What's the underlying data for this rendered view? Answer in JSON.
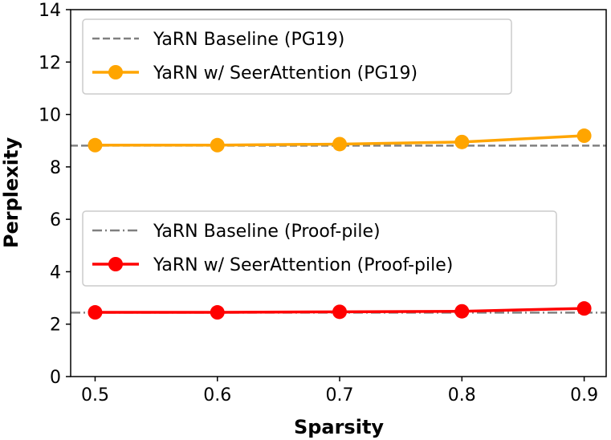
{
  "chart_data": {
    "type": "line",
    "xlabel": "Sparsity",
    "ylabel": "Perplexity",
    "xlim": [
      0.48,
      0.918
    ],
    "ylim": [
      0,
      14
    ],
    "xticks": [
      0.5,
      0.6,
      0.7,
      0.8,
      0.9
    ],
    "xtick_labels": [
      "0.5",
      "0.6",
      "0.7",
      "0.8",
      "0.9"
    ],
    "yticks": [
      0,
      2,
      4,
      6,
      8,
      10,
      12,
      14
    ],
    "ytick_labels": [
      "0",
      "2",
      "4",
      "6",
      "8",
      "10",
      "12",
      "14"
    ],
    "grid": false,
    "x": [
      0.5,
      0.6,
      0.7,
      0.8,
      0.9
    ],
    "series": [
      {
        "name": "YaRN Baseline (PG19)",
        "kind": "hline",
        "value": 8.81,
        "color": "#808080",
        "dash": "dashed"
      },
      {
        "name": "YaRN w/ SeerAttention (PG19)",
        "values": [
          8.83,
          8.83,
          8.87,
          8.95,
          9.19
        ],
        "color": "#FFA500",
        "marker": "circle"
      },
      {
        "name": "YaRN Baseline (Proof-pile)",
        "kind": "hline",
        "value": 2.44,
        "color": "#808080",
        "dash": "dashdot"
      },
      {
        "name": "YaRN w/ SeerAttention (Proof-pile)",
        "values": [
          2.45,
          2.45,
          2.47,
          2.49,
          2.6
        ],
        "color": "#FF0000",
        "marker": "circle"
      }
    ],
    "legends": [
      {
        "placement": "upper-left",
        "entries": [
          0,
          1
        ]
      },
      {
        "placement": "center-left",
        "entries": [
          2,
          3
        ]
      }
    ]
  }
}
